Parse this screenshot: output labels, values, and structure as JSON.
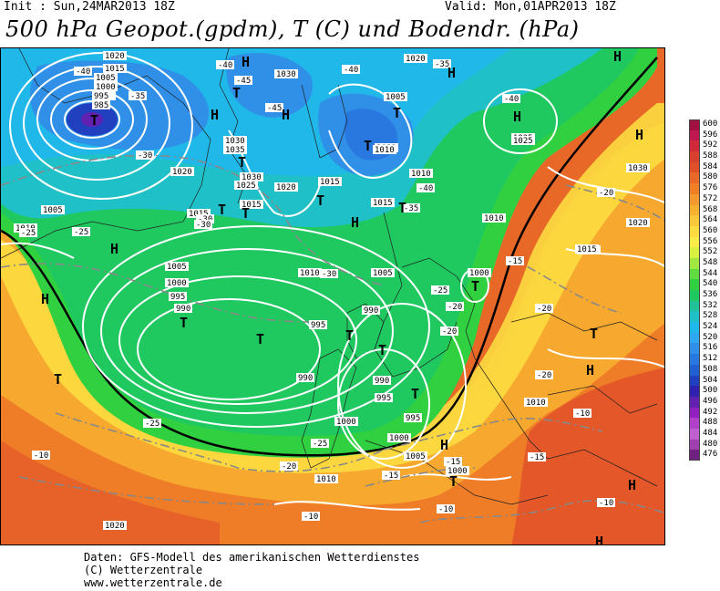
{
  "header": {
    "init": "Init : Sun,24MAR2013 18Z",
    "valid": "Valid: Mon,01APR2013 18Z",
    "title": "500 hPa Geopot.(gpdm), T (C) und Bodendr. (hPa)"
  },
  "colorbar": {
    "labels": [
      "600",
      "596",
      "592",
      "588",
      "584",
      "580",
      "576",
      "572",
      "568",
      "564",
      "560",
      "556",
      "552",
      "548",
      "544",
      "540",
      "536",
      "532",
      "528",
      "524",
      "520",
      "516",
      "512",
      "508",
      "504",
      "500",
      "496",
      "492",
      "488",
      "484",
      "480",
      "476"
    ],
    "colors": [
      "#a01040",
      "#c01850",
      "#d02a3a",
      "#d84030",
      "#e05028",
      "#e86828",
      "#f08028",
      "#f49830",
      "#f8b030",
      "#fac838",
      "#fcdc40",
      "#f8ec48",
      "#d8f040",
      "#a0e840",
      "#60dc40",
      "#30d040",
      "#20c860",
      "#20c098",
      "#20c0c8",
      "#20b8e8",
      "#30a8f0",
      "#3090e8",
      "#2878e0",
      "#2060d0",
      "#2040c0",
      "#3020b0",
      "#6020b0",
      "#9020c0",
      "#b040c8",
      "#c060d0",
      "#a040b0",
      "#702080"
    ]
  },
  "map": {
    "pressure_labels": [
      "1020",
      "1015",
      "1005",
      "1000",
      "995",
      "985",
      "1010",
      "1030",
      "1025",
      "1020",
      "1015",
      "1005",
      "1015",
      "1030",
      "1035",
      "1030",
      "1025",
      "1020",
      "1015",
      "1010",
      "1020",
      "1025",
      "1030",
      "1020",
      "1015",
      "1010",
      "1005",
      "1000",
      "995",
      "990",
      "1010",
      "1005",
      "1000",
      "995",
      "990",
      "990",
      "990",
      "995",
      "995",
      "1000",
      "1000",
      "1005",
      "1010",
      "1020",
      "1010",
      "1015",
      "1010",
      "1015",
      "1005",
      "1000",
      "1010"
    ],
    "temperature_labels": [
      "-40",
      "-35",
      "-30",
      "-25",
      "-40",
      "-45",
      "-45",
      "-40",
      "-35",
      "-40",
      "-35",
      "-40",
      "-30",
      "-30",
      "-25",
      "-20",
      "-25",
      "-20",
      "-25",
      "-20",
      "-20",
      "-15",
      "-15",
      "-10",
      "-10",
      "-20",
      "-15",
      "-10",
      "-10",
      "-15",
      "-10",
      "-20",
      "-25",
      "-30"
    ],
    "highs": [
      "H",
      "H",
      "H",
      "H",
      "H",
      "H",
      "H",
      "H",
      "H",
      "H",
      "H",
      "H",
      "H",
      "H"
    ],
    "lows": [
      "T",
      "T",
      "T",
      "T",
      "T",
      "T",
      "T",
      "T",
      "T",
      "T",
      "T",
      "T",
      "T",
      "T",
      "T",
      "T",
      "T",
      "T"
    ]
  },
  "footer": {
    "line1": "Daten: GFS-Modell des amerikanischen Wetterdienstes",
    "line2": "(C) Wetterzentrale",
    "line3": "www.wetterzentrale.de"
  }
}
